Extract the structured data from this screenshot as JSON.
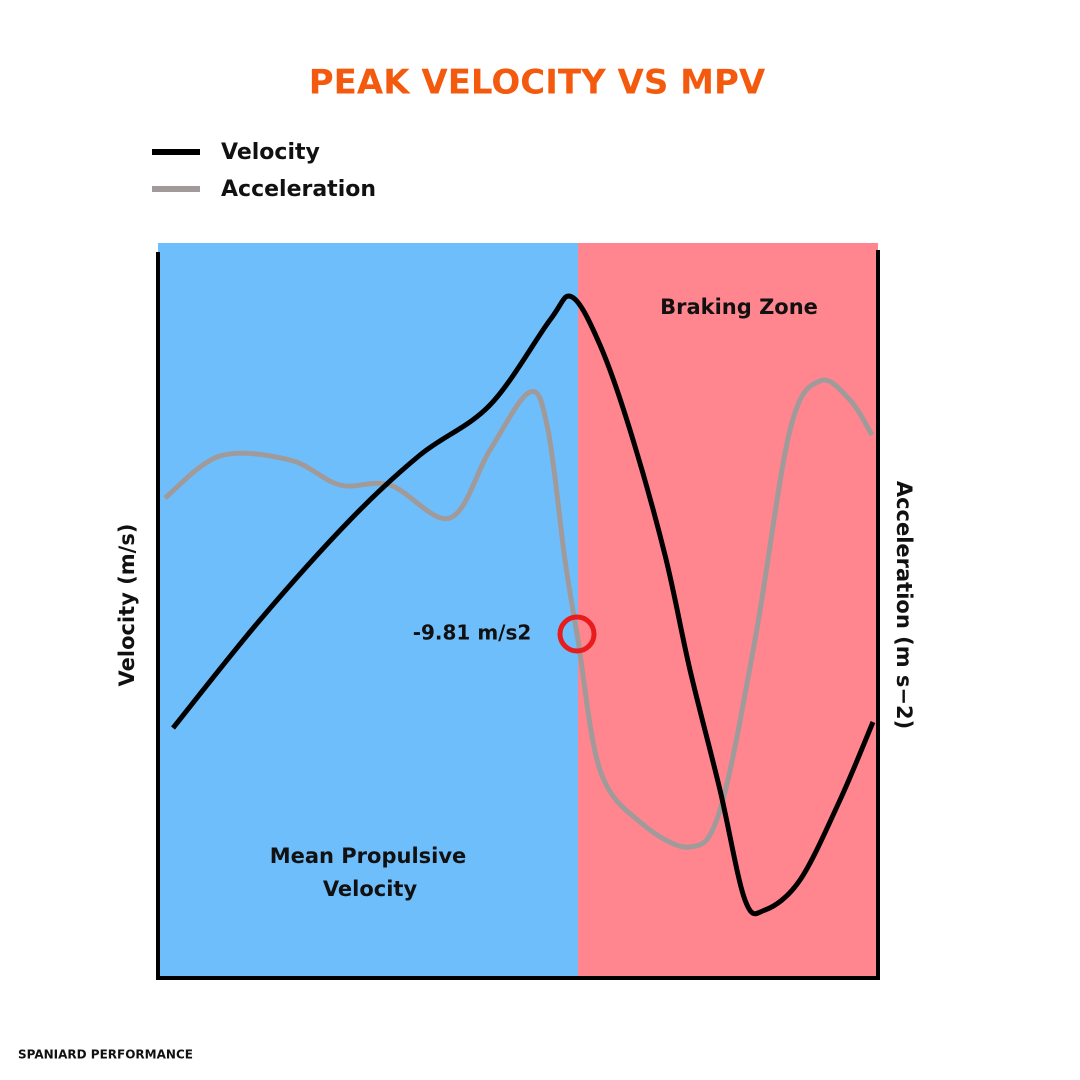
{
  "header": {
    "title": "PEAK VELOCITY VS MPV"
  },
  "legend": {
    "items": [
      "Velocity",
      "Acceleration"
    ]
  },
  "zones": {
    "propulsive": [
      "Mean Propulsive",
      "Velocity"
    ],
    "braking": "Braking Zone"
  },
  "annotation": "-9.81 m/s2",
  "axes": {
    "left": "Velocity (m/s)",
    "right": "Acceleration (m s−2)"
  },
  "footer": "SPANIARD PERFORMANCE"
}
